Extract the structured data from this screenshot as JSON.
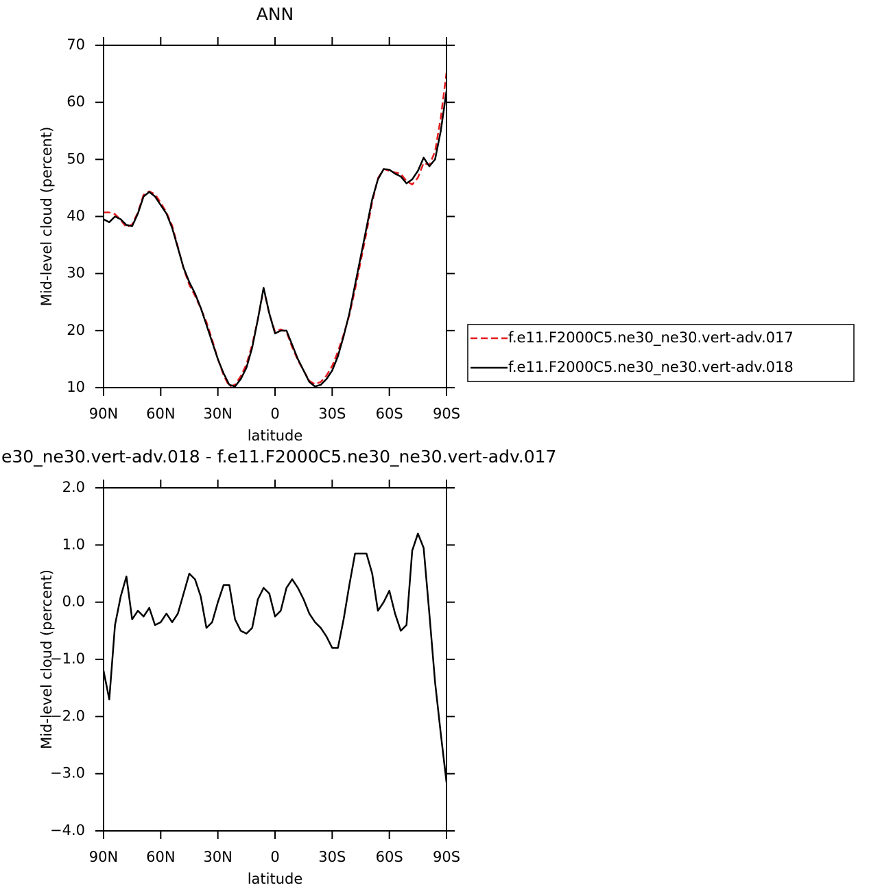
{
  "chart_data": [
    {
      "type": "line",
      "title": "ANN",
      "xlabel": "latitude",
      "ylabel": "Mid-level cloud (percent)",
      "x": [
        90,
        87,
        84,
        81,
        78,
        75,
        72,
        69,
        66,
        63,
        60,
        57,
        54,
        51,
        48,
        45,
        42,
        39,
        36,
        33,
        30,
        27,
        24,
        21,
        18,
        15,
        12,
        9,
        6,
        3,
        0,
        -3,
        -6,
        -9,
        -12,
        -15,
        -18,
        -21,
        -24,
        -27,
        -30,
        -33,
        -36,
        -39,
        -42,
        -45,
        -48,
        -51,
        -54,
        -57,
        -60,
        -63,
        -66,
        -69,
        -72,
        -75,
        -78,
        -81,
        -84,
        -87,
        -90
      ],
      "xlim": [
        90,
        -90
      ],
      "xticks": [
        {
          "value": 90,
          "label": "90N"
        },
        {
          "value": 60,
          "label": "60N"
        },
        {
          "value": 30,
          "label": "30N"
        },
        0,
        {
          "value": -30,
          "label": "30S"
        },
        {
          "value": -60,
          "label": "60S"
        },
        {
          "value": -90,
          "label": "90S"
        }
      ],
      "ylim": [
        10,
        70
      ],
      "yticks": [
        10,
        20,
        30,
        40,
        50,
        60,
        70
      ],
      "legend": "right",
      "series": [
        {
          "name": "f.e11.F2000C5.ne30_ne30.vert-adv.017",
          "color": "#e41a1c",
          "style": "dashed",
          "values": [
            40.7,
            40.7,
            40.4,
            39.4,
            38.1,
            38.6,
            40.7,
            43.8,
            44.4,
            43.9,
            42.4,
            40.7,
            38.4,
            34.7,
            30.9,
            28.0,
            26.1,
            23.9,
            21.5,
            18.4,
            15.0,
            12.2,
            10.2,
            10.5,
            12.0,
            14.1,
            17.5,
            22.0,
            27.3,
            22.9,
            19.8,
            20.2,
            19.8,
            17.1,
            14.8,
            13.0,
            11.2,
            10.6,
            11.0,
            12.1,
            13.8,
            16.3,
            19.3,
            22.7,
            27.2,
            32.2,
            37.2,
            42.5,
            46.7,
            48.3,
            48.0,
            47.7,
            47.5,
            46.2,
            45.6,
            46.8,
            49.4,
            49.0,
            51.4,
            57.3,
            65.2
          ]
        },
        {
          "name": "f.e11.F2000C5.ne30_ne30.vert-adv.018",
          "color": "#000000",
          "style": "solid",
          "values": [
            39.5,
            39.0,
            40.0,
            39.5,
            38.5,
            38.3,
            40.5,
            43.5,
            44.3,
            43.5,
            42.0,
            40.5,
            38.0,
            34.5,
            31.0,
            28.5,
            26.5,
            24.0,
            21.0,
            18.0,
            15.0,
            12.5,
            10.5,
            10.2,
            11.5,
            13.5,
            17.0,
            22.0,
            27.5,
            23.0,
            19.5,
            20.0,
            20.0,
            17.5,
            15.0,
            13.0,
            11.0,
            10.2,
            10.5,
            11.5,
            13.0,
            15.5,
            19.0,
            23.0,
            28.0,
            33.0,
            38.0,
            43.0,
            46.5,
            48.3,
            48.2,
            47.5,
            47.0,
            45.8,
            46.5,
            48.0,
            50.3,
            48.8,
            50.0,
            55.0,
            62.0
          ]
        }
      ]
    },
    {
      "type": "line",
      "title": "e30_ne30.vert-adv.018 - f.e11.F2000C5.ne30_ne30.vert-adv.017",
      "xlabel": "latitude",
      "ylabel": "Mid-level cloud (percent)",
      "x": [
        90,
        87,
        84,
        81,
        78,
        75,
        72,
        69,
        66,
        63,
        60,
        57,
        54,
        51,
        48,
        45,
        42,
        39,
        36,
        33,
        30,
        27,
        24,
        21,
        18,
        15,
        12,
        9,
        6,
        3,
        0,
        -3,
        -6,
        -9,
        -12,
        -15,
        -18,
        -21,
        -24,
        -27,
        -30,
        -33,
        -36,
        -39,
        -42,
        -45,
        -48,
        -51,
        -54,
        -57,
        -60,
        -63,
        -66,
        -69,
        -72,
        -75,
        -78,
        -81,
        -84,
        -87,
        -90
      ],
      "xlim": [
        90,
        -90
      ],
      "xticks": [
        {
          "value": 90,
          "label": "90N"
        },
        {
          "value": 60,
          "label": "60N"
        },
        {
          "value": 30,
          "label": "30N"
        },
        0,
        {
          "value": -30,
          "label": "30S"
        },
        {
          "value": -60,
          "label": "60S"
        },
        {
          "value": -90,
          "label": "90S"
        }
      ],
      "ylim": [
        -4,
        2
      ],
      "yticks": [
        {
          "value": -4,
          "label": "−4.0"
        },
        {
          "value": -3,
          "label": "−3.0"
        },
        {
          "value": -2,
          "label": "−2.0"
        },
        {
          "value": -1,
          "label": "−1.0"
        },
        {
          "value": 0,
          "label": "0.0"
        },
        {
          "value": 1,
          "label": "1.0"
        },
        {
          "value": 2,
          "label": "2.0"
        }
      ],
      "series": [
        {
          "color": "#000000",
          "style": "solid",
          "values": [
            -1.2,
            -1.7,
            -0.4,
            0.1,
            0.45,
            -0.3,
            -0.15,
            -0.25,
            -0.1,
            -0.4,
            -0.35,
            -0.2,
            -0.35,
            -0.2,
            0.15,
            0.5,
            0.4,
            0.1,
            -0.45,
            -0.35,
            0.0,
            0.3,
            0.3,
            -0.3,
            -0.5,
            -0.55,
            -0.45,
            0.05,
            0.25,
            0.15,
            -0.25,
            -0.15,
            0.25,
            0.4,
            0.25,
            0.05,
            -0.2,
            -0.35,
            -0.45,
            -0.6,
            -0.8,
            -0.8,
            -0.3,
            0.3,
            0.85,
            0.85,
            0.85,
            0.5,
            -0.15,
            0.0,
            0.2,
            -0.2,
            -0.5,
            -0.4,
            0.9,
            1.2,
            0.95,
            -0.2,
            -1.4,
            -2.3,
            -3.15
          ]
        }
      ]
    }
  ]
}
